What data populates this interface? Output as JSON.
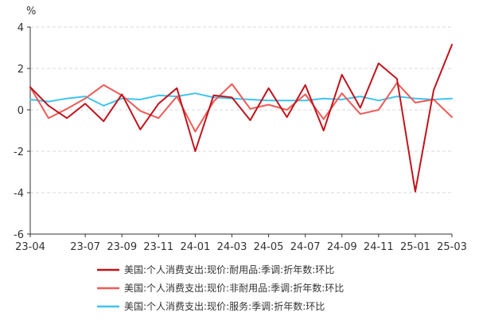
{
  "chart_data": {
    "type": "line",
    "unit_label": "%",
    "ylim": [
      -6,
      4
    ],
    "yticks": [
      4,
      2,
      0,
      -2,
      -4,
      -6
    ],
    "grid": "horizontal dashed",
    "legend_position": "bottom",
    "x": [
      "23-04",
      "23-05",
      "23-06",
      "23-07",
      "23-08",
      "23-09",
      "23-10",
      "23-11",
      "23-12",
      "24-01",
      "24-02",
      "24-03",
      "24-04",
      "24-05",
      "24-06",
      "24-07",
      "24-08",
      "24-09",
      "24-10",
      "24-11",
      "24-12",
      "25-01",
      "25-02",
      "25-03"
    ],
    "xtick_labels": [
      "23-04",
      "23-07",
      "23-09",
      "23-11",
      "24-01",
      "24-03",
      "24-05",
      "24-07",
      "24-09",
      "24-11",
      "25-01",
      "25-03"
    ],
    "series": [
      {
        "name": "美国:个人消费支出:现价:耐用品:季调:折年数:环比",
        "color": "#c0141c",
        "values": [
          1.1,
          0.2,
          -0.4,
          0.3,
          -0.55,
          0.75,
          -0.95,
          0.3,
          1.05,
          -2.0,
          0.7,
          0.6,
          -0.5,
          1.05,
          -0.35,
          1.2,
          -1.0,
          1.7,
          0.1,
          2.25,
          1.5,
          -3.95,
          0.95,
          3.15
        ]
      },
      {
        "name": "美国:个人消费支出:现价:非耐用品:季调:折年数:环比",
        "color": "#ef5a56",
        "values": [
          1.1,
          -0.4,
          0.05,
          0.55,
          1.2,
          0.7,
          -0.05,
          -0.4,
          0.65,
          -1.05,
          0.4,
          1.25,
          0.05,
          0.25,
          0.0,
          0.75,
          -0.45,
          0.8,
          -0.2,
          0.0,
          1.3,
          0.35,
          0.5,
          -0.35
        ]
      },
      {
        "name": "美国:个人消费支出:现价:服务:季调:折年数:环比",
        "color": "#3fc3f0",
        "values": [
          0.5,
          0.4,
          0.55,
          0.65,
          0.2,
          0.55,
          0.5,
          0.7,
          0.65,
          0.8,
          0.6,
          0.55,
          0.5,
          0.45,
          0.45,
          0.45,
          0.55,
          0.5,
          0.65,
          0.45,
          0.65,
          0.55,
          0.5,
          0.55
        ]
      }
    ]
  }
}
